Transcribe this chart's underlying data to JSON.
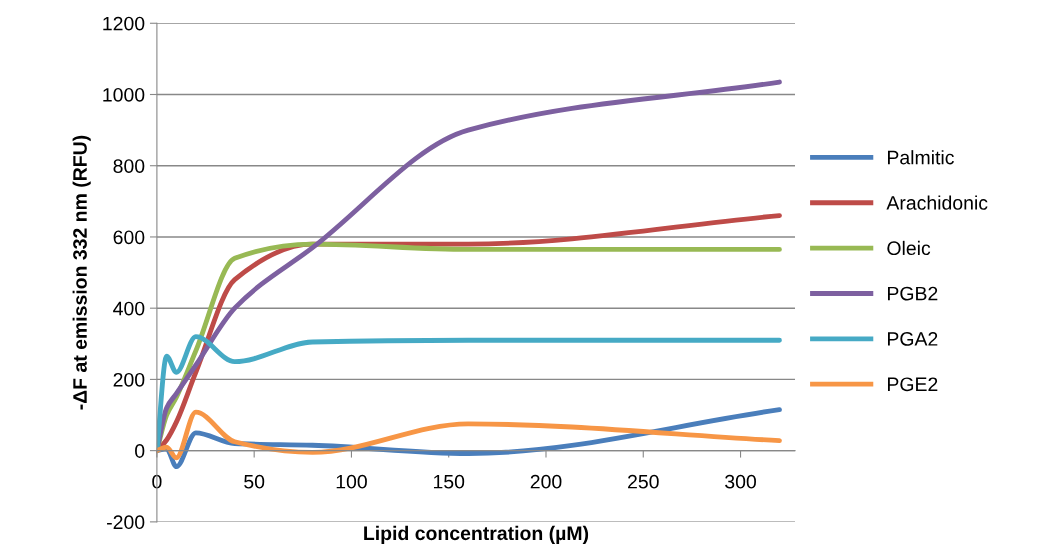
{
  "chart_data": {
    "type": "line",
    "xlabel": "Lipid concentration (µM)",
    "ylabel": "-ΔF at emission 332 nm (RFU)",
    "xlim": [
      0,
      328
    ],
    "xticks": [
      0,
      50,
      100,
      150,
      200,
      250,
      300
    ],
    "ylim": [
      -200,
      1200
    ],
    "yticks": [
      {
        "value": -200,
        "label": "-200"
      },
      0,
      200,
      400,
      600,
      800,
      1000,
      1200
    ],
    "grid": "y",
    "legend": "right",
    "marker": "none",
    "line_style": "solid",
    "x": [
      0,
      5,
      10,
      20,
      40,
      80,
      160,
      320
    ],
    "series": [
      {
        "name": "Palmitic",
        "color": "#4a7ebb",
        "values": [
          0,
          5,
          -45,
          50,
          20,
          15,
          -8,
          115
        ]
      },
      {
        "name": "Arachidonic",
        "color": "#be4b48",
        "values": [
          0,
          30,
          80,
          220,
          480,
          580,
          580,
          660
        ]
      },
      {
        "name": "Oleic",
        "color": "#98b954",
        "values": [
          0,
          100,
          150,
          280,
          540,
          580,
          565,
          565
        ]
      },
      {
        "name": "PGB2",
        "color": "#7d60a0",
        "values": [
          0,
          120,
          160,
          240,
          400,
          570,
          900,
          1035
        ]
      },
      {
        "name": "PGA2",
        "color": "#46aac5",
        "values": [
          0,
          265,
          220,
          320,
          250,
          305,
          310,
          310
        ]
      },
      {
        "name": "PGE2",
        "color": "#f79646",
        "values": [
          0,
          10,
          -20,
          108,
          25,
          -5,
          75,
          28
        ]
      }
    ]
  }
}
